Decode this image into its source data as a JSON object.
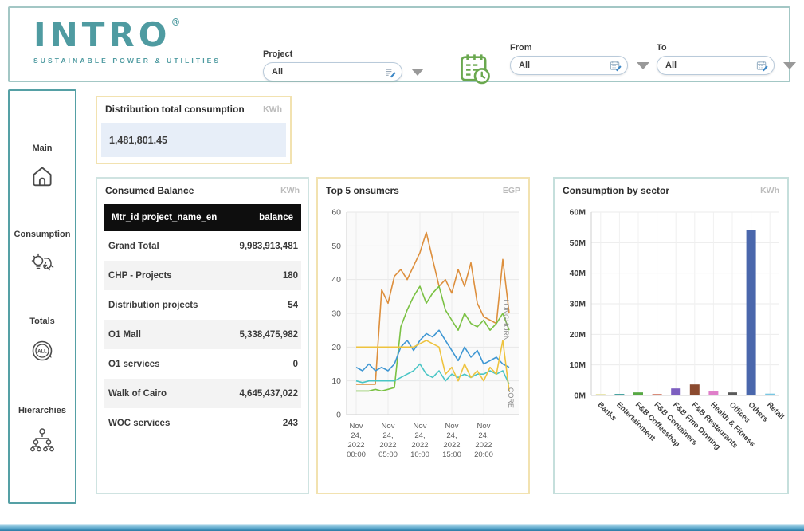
{
  "header": {
    "logo": {
      "text": "INTRO",
      "registered": "®",
      "subtitle": "SUSTAINABLE POWER & UTILITIES",
      "color": "#4f9ba1"
    },
    "filters": {
      "project": {
        "label": "Project",
        "value": "All"
      },
      "from": {
        "label": "From",
        "value": "All"
      },
      "to": {
        "label": "To",
        "value": "All"
      }
    }
  },
  "sidebar": {
    "items": [
      {
        "label": "Main",
        "icon": "home-icon"
      },
      {
        "label": "Consumption",
        "icon": "plug-bulb-icon"
      },
      {
        "label": "Totals",
        "icon": "all-circle-icon"
      },
      {
        "label": "Hierarchies",
        "icon": "hierarchy-icon"
      }
    ]
  },
  "kpi": {
    "title": "Distribution total consumption",
    "unit": "KWh",
    "value": "1,481,801.45",
    "value_bg": "#e7eef8"
  },
  "balance_table": {
    "title": "Consumed Balance",
    "unit": "KWh",
    "columns": {
      "left": "Mtr_id project_name_en",
      "right": "balance"
    },
    "rows": [
      {
        "name": "Grand Total",
        "balance": "9,983,913,481"
      },
      {
        "name": "CHP - Projects",
        "balance": "180"
      },
      {
        "name": "Distribution projects",
        "balance": "54"
      },
      {
        "name": "O1 Mall",
        "balance": "5,338,475,982"
      },
      {
        "name": "O1 services",
        "balance": "0"
      },
      {
        "name": "Walk of Cairo",
        "balance": "4,645,437,022"
      },
      {
        "name": "WOC services",
        "balance": "243"
      }
    ]
  },
  "chart_data": [
    {
      "type": "line",
      "title": "Top 5 onsumers",
      "unit": "EGP",
      "ylim": [
        0,
        60
      ],
      "yticks": [
        0,
        10,
        20,
        30,
        40,
        50,
        60
      ],
      "grid": true,
      "legend_position": "none",
      "x_hours": [
        0,
        1,
        2,
        3,
        4,
        5,
        6,
        7,
        8,
        9,
        10,
        11,
        12,
        13,
        14,
        15,
        16,
        17,
        18,
        19,
        20,
        21,
        22,
        23,
        24
      ],
      "x_ticks": [
        {
          "hour": 0,
          "label": [
            "Nov",
            "24,",
            "2022",
            "00:00"
          ]
        },
        {
          "hour": 5,
          "label": [
            "Nov",
            "24,",
            "2022",
            "05:00"
          ]
        },
        {
          "hour": 10,
          "label": [
            "Nov",
            "24,",
            "2022",
            "10:00"
          ]
        },
        {
          "hour": 15,
          "label": [
            "Nov",
            "24,",
            "2022",
            "15:00"
          ]
        },
        {
          "hour": 20,
          "label": [
            "Nov",
            "24,",
            "2022",
            "20:00"
          ]
        }
      ],
      "series": [
        {
          "name": "LONGHORN",
          "color": "#dd8f3d",
          "values": [
            9,
            9,
            9,
            9,
            37,
            33,
            41,
            43,
            40,
            44,
            48,
            54,
            46,
            38,
            40,
            36,
            43,
            38,
            45,
            33,
            29,
            28,
            27,
            46,
            30
          ]
        },
        {
          "name": "",
          "color": "#7ac143",
          "values": [
            7,
            7,
            7,
            7.5,
            7,
            7.5,
            8,
            26,
            31,
            35,
            38,
            33,
            36,
            38,
            31,
            28,
            25,
            30,
            27,
            26,
            28,
            25,
            27,
            30,
            25
          ]
        },
        {
          "name": "",
          "color": "#3f97d3",
          "values": [
            14,
            13,
            15,
            13,
            14,
            13,
            15,
            20,
            22,
            19,
            22,
            24,
            23,
            25,
            22,
            19,
            16,
            20,
            17,
            19,
            15,
            16,
            17,
            15,
            14
          ]
        },
        {
          "name": "",
          "color": "#49c5c5",
          "values": [
            10,
            9.5,
            10,
            10,
            10,
            10,
            10,
            11,
            12,
            13,
            15,
            12,
            11,
            13,
            10,
            12,
            11,
            12,
            11,
            12,
            12,
            13,
            12,
            13,
            9
          ]
        },
        {
          "name": "CORE",
          "color": "#eec33e",
          "values": [
            20,
            20,
            20,
            20,
            20,
            20,
            20,
            20,
            20,
            20,
            21,
            22,
            21,
            20,
            12,
            14,
            10,
            15,
            11,
            13,
            10,
            14,
            12,
            22,
            7
          ]
        }
      ],
      "end_labels": [
        {
          "text": "LONGHORN",
          "hour": 23.1,
          "value": 28
        },
        {
          "text": "CORE",
          "hour": 23.9,
          "value": 5
        }
      ]
    },
    {
      "type": "bar",
      "title": "Consumption by sector",
      "unit": "KWh",
      "ylabel": "",
      "xlabel": "",
      "ylim": [
        0,
        60
      ],
      "ytick_labels": [
        "0M",
        "10M",
        "20M",
        "30M",
        "40M",
        "50M",
        "60M"
      ],
      "grid": true,
      "legend_position": "none",
      "categories": [
        "Banks",
        "Entertainment",
        "F&B Coffeeshop",
        "F&B Containers",
        "F&B Fine Dinning",
        "F&B Restaurants",
        "Health & Fitness",
        "Offices",
        "Others",
        "Retail"
      ],
      "values_millions": [
        0.3,
        0.5,
        1.0,
        0.5,
        2.3,
        3.6,
        1.3,
        1.0,
        54,
        0.6
      ],
      "colors": [
        "#e9e6b0",
        "#4aa5a2",
        "#57a843",
        "#d98c7a",
        "#7d5fc0",
        "#8b4a2f",
        "#df7ec9",
        "#5a5a5a",
        "#4a67ac",
        "#79c7e3"
      ]
    }
  ]
}
